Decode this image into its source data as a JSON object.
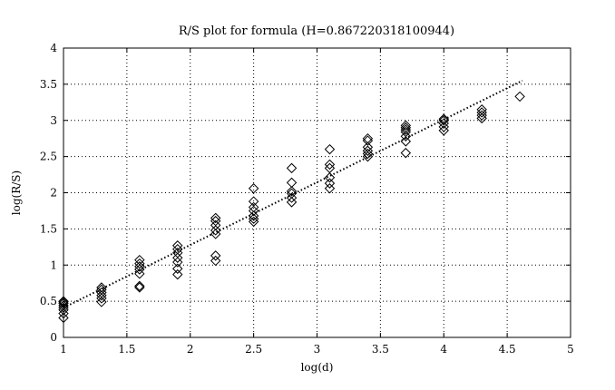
{
  "chart_data": {
    "type": "scatter",
    "title": "R/S plot for formula (H=0.867220318100944)",
    "xlabel": "log(d)",
    "ylabel": "log(R/S)",
    "xlim": [
      1,
      5
    ],
    "ylim": [
      0,
      4
    ],
    "xticks": [
      "1",
      "1.5",
      "2",
      "2.5",
      "3",
      "3.5",
      "4",
      "4.5",
      "5"
    ],
    "yticks": [
      "0",
      "0.5",
      "1",
      "1.5",
      "2",
      "2.5",
      "3",
      "3.5",
      "4"
    ],
    "grid": true,
    "marker": "diamond",
    "points": [
      {
        "x": 1.0,
        "y": 0.27
      },
      {
        "x": 1.0,
        "y": 0.33
      },
      {
        "x": 1.0,
        "y": 0.38
      },
      {
        "x": 1.0,
        "y": 0.41
      },
      {
        "x": 1.0,
        "y": 0.44
      },
      {
        "x": 1.0,
        "y": 0.47
      },
      {
        "x": 1.0,
        "y": 0.49
      },
      {
        "x": 1.0,
        "y": 0.5
      },
      {
        "x": 1.3,
        "y": 0.49
      },
      {
        "x": 1.3,
        "y": 0.54
      },
      {
        "x": 1.3,
        "y": 0.58
      },
      {
        "x": 1.3,
        "y": 0.62
      },
      {
        "x": 1.3,
        "y": 0.66
      },
      {
        "x": 1.3,
        "y": 0.69
      },
      {
        "x": 1.6,
        "y": 0.69
      },
      {
        "x": 1.6,
        "y": 0.71
      },
      {
        "x": 1.6,
        "y": 0.88
      },
      {
        "x": 1.6,
        "y": 0.94
      },
      {
        "x": 1.6,
        "y": 0.98
      },
      {
        "x": 1.6,
        "y": 1.02
      },
      {
        "x": 1.6,
        "y": 1.07
      },
      {
        "x": 1.9,
        "y": 0.87
      },
      {
        "x": 1.9,
        "y": 0.95
      },
      {
        "x": 1.9,
        "y": 1.04
      },
      {
        "x": 1.9,
        "y": 1.1
      },
      {
        "x": 1.9,
        "y": 1.17
      },
      {
        "x": 1.9,
        "y": 1.22
      },
      {
        "x": 1.9,
        "y": 1.27
      },
      {
        "x": 2.2,
        "y": 1.06
      },
      {
        "x": 2.2,
        "y": 1.13
      },
      {
        "x": 2.2,
        "y": 1.43
      },
      {
        "x": 2.2,
        "y": 1.48
      },
      {
        "x": 2.2,
        "y": 1.55
      },
      {
        "x": 2.2,
        "y": 1.61
      },
      {
        "x": 2.2,
        "y": 1.65
      },
      {
        "x": 2.5,
        "y": 1.6
      },
      {
        "x": 2.5,
        "y": 1.64
      },
      {
        "x": 2.5,
        "y": 1.68
      },
      {
        "x": 2.5,
        "y": 1.75
      },
      {
        "x": 2.5,
        "y": 1.8
      },
      {
        "x": 2.5,
        "y": 1.88
      },
      {
        "x": 2.5,
        "y": 2.06
      },
      {
        "x": 2.8,
        "y": 1.87
      },
      {
        "x": 2.8,
        "y": 1.93
      },
      {
        "x": 2.8,
        "y": 1.99
      },
      {
        "x": 2.8,
        "y": 2.02
      },
      {
        "x": 2.8,
        "y": 2.14
      },
      {
        "x": 2.8,
        "y": 2.34
      },
      {
        "x": 3.1,
        "y": 2.06
      },
      {
        "x": 3.1,
        "y": 2.13
      },
      {
        "x": 3.1,
        "y": 2.21
      },
      {
        "x": 3.1,
        "y": 2.34
      },
      {
        "x": 3.1,
        "y": 2.39
      },
      {
        "x": 3.1,
        "y": 2.6
      },
      {
        "x": 3.4,
        "y": 2.5
      },
      {
        "x": 3.4,
        "y": 2.54
      },
      {
        "x": 3.4,
        "y": 2.58
      },
      {
        "x": 3.4,
        "y": 2.63
      },
      {
        "x": 3.4,
        "y": 2.72
      },
      {
        "x": 3.4,
        "y": 2.75
      },
      {
        "x": 3.7,
        "y": 2.55
      },
      {
        "x": 3.7,
        "y": 2.71
      },
      {
        "x": 3.7,
        "y": 2.78
      },
      {
        "x": 3.7,
        "y": 2.84
      },
      {
        "x": 3.7,
        "y": 2.87
      },
      {
        "x": 3.7,
        "y": 2.9
      },
      {
        "x": 3.7,
        "y": 2.93
      },
      {
        "x": 4.0,
        "y": 2.86
      },
      {
        "x": 4.0,
        "y": 2.91
      },
      {
        "x": 4.0,
        "y": 2.96
      },
      {
        "x": 4.0,
        "y": 3.0
      },
      {
        "x": 4.0,
        "y": 3.02
      },
      {
        "x": 4.3,
        "y": 3.03
      },
      {
        "x": 4.3,
        "y": 3.07
      },
      {
        "x": 4.3,
        "y": 3.11
      },
      {
        "x": 4.3,
        "y": 3.15
      },
      {
        "x": 4.6,
        "y": 3.33
      }
    ],
    "fit_line": {
      "style": "dotted",
      "x": [
        1.0,
        4.62
      ],
      "y": [
        0.41,
        3.55
      ]
    }
  }
}
